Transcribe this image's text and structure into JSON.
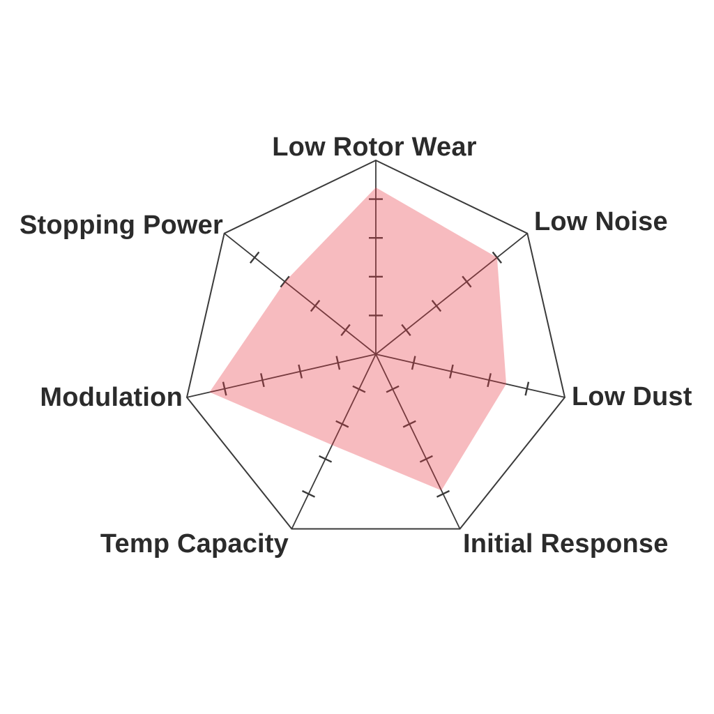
{
  "chart_data": {
    "type": "radar",
    "title": "",
    "categories": [
      "Low Rotor Wear",
      "Low Noise",
      "Low Dust",
      "Initial Response",
      "Temp Capacity",
      "Modulation",
      "Stopping Power"
    ],
    "values": [
      4.3,
      4.0,
      3.45,
      3.9,
      2.6,
      4.4,
      3.0
    ],
    "scale": {
      "min": 0,
      "max": 5,
      "tick_interval": 1,
      "ticks_marked": [
        1,
        2,
        3,
        4
      ]
    },
    "legend_position": "none",
    "grid": "radial-axes-with-tick-marks-only",
    "axis_count": 7,
    "colors": {
      "fill": "#E93D49",
      "fill_opacity": 0.35,
      "axis_line": "#3A3A3A",
      "label_text": "#2B2B2B",
      "background": "#FFFFFF"
    }
  }
}
